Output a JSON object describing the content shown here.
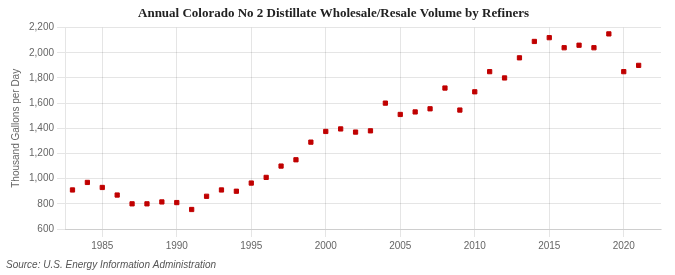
{
  "chart_data": {
    "type": "scatter",
    "title": "Annual Colorado No 2 Distillate Wholesale/Resale Volume by Refiners",
    "ylabel": "Thousand Gallons per Day",
    "annotation": "Source: U.S. Energy Information Administration",
    "color": "#c00000",
    "marker": "square",
    "grid": true,
    "xlim": [
      1982.5,
      2022.5
    ],
    "xticks": [
      1985,
      1990,
      1995,
      2000,
      2005,
      2010,
      2015,
      2020
    ],
    "ylim": [
      600,
      2200
    ],
    "yticks": [
      600,
      800,
      {
        "value": 1000,
        "label": "1,000"
      },
      {
        "value": 1200,
        "label": "1,200"
      },
      {
        "value": 1400,
        "label": "1,400"
      },
      {
        "value": 1600,
        "label": "1,600"
      },
      {
        "value": 1800,
        "label": "1,800"
      },
      {
        "value": 2000,
        "label": "2,000"
      },
      {
        "value": 2200,
        "label": "2,200"
      }
    ],
    "x": [
      1983,
      1984,
      1985,
      1986,
      1987,
      1988,
      1989,
      1990,
      1991,
      1992,
      1993,
      1994,
      1995,
      1996,
      1997,
      1998,
      1999,
      2000,
      2001,
      2002,
      2003,
      2004,
      2005,
      2006,
      2007,
      2008,
      2009,
      2010,
      2011,
      2012,
      2013,
      2014,
      2015,
      2016,
      2017,
      2018,
      2019,
      2020,
      2021
    ],
    "values": [
      910,
      970,
      930,
      870,
      800,
      800,
      815,
      810,
      755,
      860,
      910,
      900,
      965,
      1010,
      1100,
      1150,
      1290,
      1375,
      1395,
      1370,
      1380,
      1600,
      1510,
      1530,
      1555,
      1720,
      1545,
      1690,
      1850,
      1800,
      1960,
      2090,
      2120,
      2040,
      2060,
      2040,
      2150,
      1850,
      1900
    ]
  }
}
